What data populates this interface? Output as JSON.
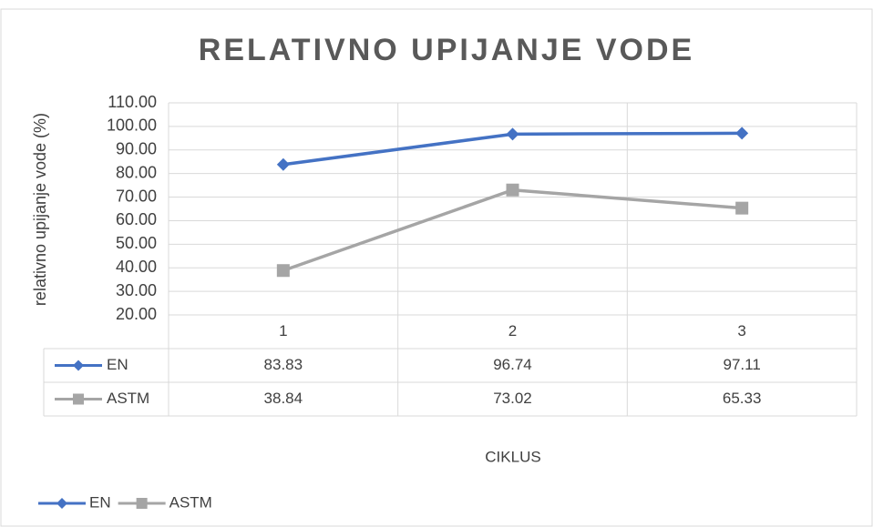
{
  "chart_data": {
    "type": "line",
    "title": "RELATIVNO UPIJANJE VODE",
    "y_label": "relativno upijanje vode (%)",
    "x_label": "CIKLUS",
    "categories": [
      "1",
      "2",
      "3"
    ],
    "series": [
      {
        "name": "EN",
        "color": "#4472c4",
        "marker": "diamond",
        "values": [
          83.83,
          96.74,
          97.11
        ]
      },
      {
        "name": "ASTM",
        "color": "#a5a5a5",
        "marker": "square",
        "values": [
          38.84,
          73.02,
          65.33
        ]
      }
    ],
    "ylim": [
      20,
      110
    ],
    "yticks": [
      {
        "value": 20,
        "label": "20.00"
      },
      {
        "value": 30,
        "label": "30.00"
      },
      {
        "value": 40,
        "label": "40.00"
      },
      {
        "value": 50,
        "label": "50.00"
      },
      {
        "value": 60,
        "label": "60.00"
      },
      {
        "value": 70,
        "label": "70.00"
      },
      {
        "value": 80,
        "label": "80.00"
      },
      {
        "value": 90,
        "label": "90.00"
      },
      {
        "value": 100,
        "label": "100.00"
      },
      {
        "value": 110,
        "label": "110.00"
      }
    ],
    "grid": true,
    "data_table": true,
    "legend": "bottom-left"
  }
}
